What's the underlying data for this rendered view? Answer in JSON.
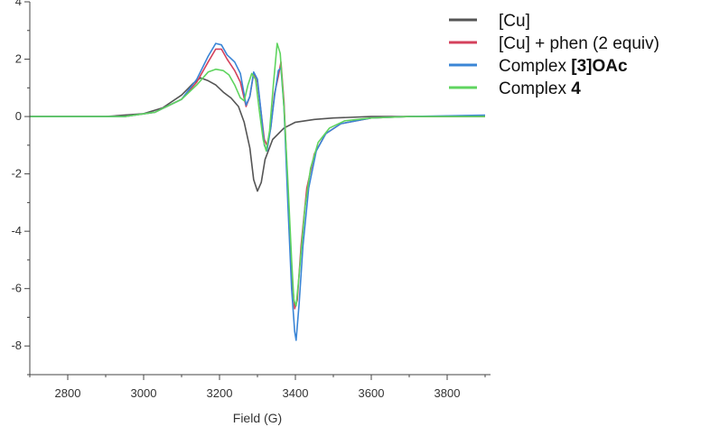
{
  "chart_data": {
    "type": "line",
    "title": "",
    "xlabel": "Field (G)",
    "ylabel": "",
    "xlim": [
      2700,
      3900
    ],
    "ylim": [
      -9,
      4
    ],
    "x_ticks": [
      "2800",
      "3000",
      "3200",
      "3400",
      "3600",
      "3800"
    ],
    "y_ticks": [
      "4",
      "2",
      "0",
      "-2",
      "-4",
      "-6",
      "-8"
    ],
    "grid": false,
    "legend_position": "top-right",
    "series": [
      {
        "name": "[Cu]",
        "legend_parts": [
          {
            "text": "[Cu]",
            "bold": false
          }
        ],
        "color": "#555555",
        "points": [
          [
            2700,
            0
          ],
          [
            2900,
            0
          ],
          [
            3000,
            0.1
          ],
          [
            3050,
            0.3
          ],
          [
            3100,
            0.75
          ],
          [
            3130,
            1.15
          ],
          [
            3150,
            1.35
          ],
          [
            3170,
            1.25
          ],
          [
            3190,
            1.1
          ],
          [
            3210,
            0.85
          ],
          [
            3230,
            0.65
          ],
          [
            3250,
            0.35
          ],
          [
            3265,
            -0.2
          ],
          [
            3280,
            -1.1
          ],
          [
            3290,
            -2.2
          ],
          [
            3300,
            -2.6
          ],
          [
            3310,
            -2.3
          ],
          [
            3320,
            -1.5
          ],
          [
            3340,
            -0.8
          ],
          [
            3370,
            -0.4
          ],
          [
            3400,
            -0.2
          ],
          [
            3450,
            -0.1
          ],
          [
            3500,
            -0.05
          ],
          [
            3600,
            0
          ],
          [
            3900,
            0
          ]
        ]
      },
      {
        "name": "[Cu] + phen (2 equiv)",
        "legend_parts": [
          {
            "text": "[Cu] + phen (2 equiv)",
            "bold": false
          }
        ],
        "color": "#d4415c",
        "points": [
          [
            2700,
            0
          ],
          [
            2950,
            0
          ],
          [
            3030,
            0.15
          ],
          [
            3100,
            0.6
          ],
          [
            3140,
            1.2
          ],
          [
            3170,
            1.9
          ],
          [
            3190,
            2.35
          ],
          [
            3205,
            2.35
          ],
          [
            3220,
            2.0
          ],
          [
            3240,
            1.6
          ],
          [
            3255,
            1.2
          ],
          [
            3270,
            0.35
          ],
          [
            3280,
            0.7
          ],
          [
            3290,
            1.5
          ],
          [
            3300,
            1.2
          ],
          [
            3310,
            0.1
          ],
          [
            3318,
            -0.8
          ],
          [
            3325,
            -1.0
          ],
          [
            3335,
            -0.4
          ],
          [
            3345,
            0.8
          ],
          [
            3355,
            1.4
          ],
          [
            3362,
            1.9
          ],
          [
            3370,
            0.5
          ],
          [
            3380,
            -2.5
          ],
          [
            3390,
            -5.5
          ],
          [
            3398,
            -6.7
          ],
          [
            3405,
            -6.4
          ],
          [
            3415,
            -4.5
          ],
          [
            3430,
            -2.5
          ],
          [
            3450,
            -1.3
          ],
          [
            3480,
            -0.6
          ],
          [
            3520,
            -0.25
          ],
          [
            3600,
            -0.05
          ],
          [
            3700,
            0
          ],
          [
            3900,
            0
          ]
        ]
      },
      {
        "name": "Complex [3]OAc",
        "legend_parts": [
          {
            "text": "Complex ",
            "bold": false
          },
          {
            "text": "[3]OAc",
            "bold": true
          }
        ],
        "color": "#3a85d6",
        "points": [
          [
            2700,
            0
          ],
          [
            2950,
            0
          ],
          [
            3030,
            0.15
          ],
          [
            3100,
            0.6
          ],
          [
            3140,
            1.3
          ],
          [
            3170,
            2.1
          ],
          [
            3190,
            2.55
          ],
          [
            3205,
            2.5
          ],
          [
            3220,
            2.15
          ],
          [
            3240,
            1.9
          ],
          [
            3255,
            1.5
          ],
          [
            3270,
            0.4
          ],
          [
            3280,
            0.7
          ],
          [
            3290,
            1.55
          ],
          [
            3300,
            1.3
          ],
          [
            3310,
            0.1
          ],
          [
            3318,
            -1.0
          ],
          [
            3325,
            -1.2
          ],
          [
            3335,
            -0.4
          ],
          [
            3345,
            0.7
          ],
          [
            3355,
            1.6
          ],
          [
            3362,
            1.7
          ],
          [
            3370,
            0.3
          ],
          [
            3380,
            -3.0
          ],
          [
            3390,
            -6.0
          ],
          [
            3398,
            -7.5
          ],
          [
            3402,
            -7.8
          ],
          [
            3410,
            -6.5
          ],
          [
            3420,
            -4.5
          ],
          [
            3435,
            -2.5
          ],
          [
            3455,
            -1.2
          ],
          [
            3480,
            -0.6
          ],
          [
            3520,
            -0.25
          ],
          [
            3600,
            -0.05
          ],
          [
            3700,
            0
          ],
          [
            3900,
            0.05
          ]
        ]
      },
      {
        "name": "Complex 4",
        "legend_parts": [
          {
            "text": "Complex ",
            "bold": false
          },
          {
            "text": "4",
            "bold": true
          }
        ],
        "color": "#5fd45f",
        "points": [
          [
            2700,
            0
          ],
          [
            2950,
            0
          ],
          [
            3030,
            0.15
          ],
          [
            3100,
            0.6
          ],
          [
            3140,
            1.1
          ],
          [
            3170,
            1.55
          ],
          [
            3190,
            1.65
          ],
          [
            3210,
            1.6
          ],
          [
            3225,
            1.45
          ],
          [
            3240,
            1.1
          ],
          [
            3255,
            0.65
          ],
          [
            3265,
            0.55
          ],
          [
            3275,
            1.1
          ],
          [
            3285,
            1.5
          ],
          [
            3295,
            1.3
          ],
          [
            3305,
            0.2
          ],
          [
            3315,
            -0.8
          ],
          [
            3323,
            -1.2
          ],
          [
            3332,
            -0.5
          ],
          [
            3342,
            1.1
          ],
          [
            3352,
            2.55
          ],
          [
            3360,
            2.2
          ],
          [
            3370,
            0.3
          ],
          [
            3380,
            -2.2
          ],
          [
            3390,
            -5.0
          ],
          [
            3396,
            -6.4
          ],
          [
            3402,
            -6.6
          ],
          [
            3410,
            -5.5
          ],
          [
            3425,
            -3.2
          ],
          [
            3440,
            -1.8
          ],
          [
            3460,
            -0.9
          ],
          [
            3490,
            -0.4
          ],
          [
            3530,
            -0.15
          ],
          [
            3600,
            -0.05
          ],
          [
            3700,
            0
          ],
          [
            3900,
            0
          ]
        ]
      }
    ]
  }
}
